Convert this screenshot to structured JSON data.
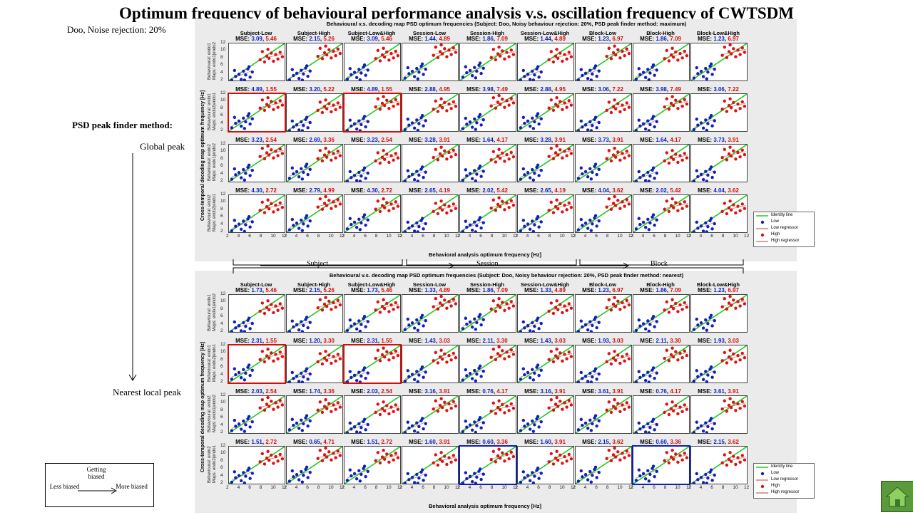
{
  "slide": {
    "title": "Optimum frequency of behavioural performance analysis v.s. oscillation frequency of CWTSDM",
    "subject_note": "Doo, Noise rejection:  20%",
    "method_heading": "PSD peak finder method:",
    "method_global": "Global peak",
    "method_nearest": "Nearest local peak",
    "groups": [
      "Subject",
      "Session",
      "Block"
    ],
    "bias_legend": {
      "top": "Getting biased",
      "left": "Less biased",
      "right": "More biased"
    }
  },
  "colors": {
    "low": "#1020c0",
    "high": "#e01010",
    "identity": "#22cc22",
    "regressor": "#d08080",
    "highlight_red": "#d01010",
    "highlight_blue": "#1020b0",
    "home": "#5a9a3a"
  },
  "icons": {
    "home_button": "home-icon",
    "down_arrow": "arrow-down-icon",
    "right_arrow": "arrow-right-icon"
  },
  "figure": {
    "columns": [
      "Subject-Low",
      "Subject-High",
      "Subject-Low&High",
      "Session-Low",
      "Session-High",
      "Session-Low&High",
      "Block-Low",
      "Block-High",
      "Block-Low&High"
    ],
    "ylabel": "Cross-temporal decoding map optimum frequency [Hz]",
    "xlabel": "Behavioral analysis optimum frequency [Hz]",
    "ticks": [
      "2",
      "4",
      "6",
      "8",
      "10",
      "12"
    ],
    "legend": [
      "Identity line",
      "Low",
      "Low regressor",
      "High",
      "High regressor"
    ],
    "top": {
      "suptitle": "Behavioural v.s. decoding map PSD optimum frequencies (Subject: Doo, Noisy behaviour rejection: 20%, PSD peak finder method: maximum)",
      "rows": [
        {
          "ylabel": [
            "Behavioural: endo1",
            "Maps: endo1|endo2"
          ],
          "mse": [
            [
              "3.09",
              "5.46"
            ],
            [
              "2.15",
              "5.26"
            ],
            [
              "3.09",
              "5.46"
            ],
            [
              "1.44",
              "4.89"
            ],
            [
              "1.86",
              "7.09"
            ],
            [
              "1.44",
              "4.89"
            ],
            [
              "1.23",
              "6.97"
            ],
            [
              "1.86",
              "7.09"
            ],
            [
              "1.23",
              "6.97"
            ]
          ]
        },
        {
          "ylabel": [
            "Behavioural: endo1",
            "Maps: endo2|endo1"
          ],
          "mse": [
            [
              "4.89",
              "1.55"
            ],
            [
              "3.20",
              "5.22"
            ],
            [
              "4.89",
              "1.55"
            ],
            [
              "2.88",
              "4.95"
            ],
            [
              "3.98",
              "7.49"
            ],
            [
              "2.88",
              "4.95"
            ],
            [
              "3.06",
              "7.22"
            ],
            [
              "3.98",
              "7.49"
            ],
            [
              "3.06",
              "7.22"
            ]
          ]
        },
        {
          "ylabel": [
            "Behavioural: endo2",
            "Maps: endo1|endo2"
          ],
          "mse": [
            [
              "3.23",
              "2.54"
            ],
            [
              "2.69",
              "3.36"
            ],
            [
              "3.23",
              "2.54"
            ],
            [
              "3.28",
              "3.91"
            ],
            [
              "1.64",
              "4.17"
            ],
            [
              "3.28",
              "3.91"
            ],
            [
              "3.73",
              "3.91"
            ],
            [
              "1.64",
              "4.17"
            ],
            [
              "3.73",
              "3.91"
            ]
          ]
        },
        {
          "ylabel": [
            "Behavioural: endo2",
            "Maps: endo2|endo1"
          ],
          "mse": [
            [
              "4.30",
              "2.72"
            ],
            [
              "2.79",
              "4.99"
            ],
            [
              "4.30",
              "2.72"
            ],
            [
              "2.65",
              "4.19"
            ],
            [
              "2.02",
              "5.42"
            ],
            [
              "2.65",
              "4.19"
            ],
            [
              "4.04",
              "3.62"
            ],
            [
              "2.02",
              "5.42"
            ],
            [
              "4.04",
              "3.62"
            ]
          ]
        }
      ]
    },
    "bottom": {
      "suptitle": "Behavioural v.s. decoding map PSD optimum frequencies (Subject: Doo, Noisy behaviour rejection: 20%, PSD peak finder method: nearest)",
      "rows": [
        {
          "ylabel": [
            "Behavioural: endo1",
            "Maps: endo1|endo2"
          ],
          "mse": [
            [
              "1.73",
              "5.46"
            ],
            [
              "2.15",
              "5.26"
            ],
            [
              "1.73",
              "5.46"
            ],
            [
              "1.33",
              "4.89"
            ],
            [
              "1.86",
              "7.09"
            ],
            [
              "1.33",
              "4.89"
            ],
            [
              "1.23",
              "6.97"
            ],
            [
              "1.86",
              "7.09"
            ],
            [
              "1.23",
              "6.97"
            ]
          ]
        },
        {
          "ylabel": [
            "Behavioural: endo1",
            "Maps: endo2|endo1"
          ],
          "mse": [
            [
              "2.31",
              "1.55"
            ],
            [
              "1.20",
              "3.30"
            ],
            [
              "2.31",
              "1.55"
            ],
            [
              "1.43",
              "3.03"
            ],
            [
              "2.11",
              "3.30"
            ],
            [
              "1.43",
              "3.03"
            ],
            [
              "1.93",
              "3.03"
            ],
            [
              "2.11",
              "3.30"
            ],
            [
              "1.93",
              "3.03"
            ]
          ]
        },
        {
          "ylabel": [
            "Behavioural: endo2",
            "Maps: endo1|endo2"
          ],
          "mse": [
            [
              "2.03",
              "2.54"
            ],
            [
              "1.74",
              "3.36"
            ],
            [
              "2.03",
              "2.54"
            ],
            [
              "3.16",
              "3.91"
            ],
            [
              "0.76",
              "4.17"
            ],
            [
              "3.16",
              "3.91"
            ],
            [
              "3.61",
              "3.91"
            ],
            [
              "0.76",
              "4.17"
            ],
            [
              "3.61",
              "3.91"
            ]
          ]
        },
        {
          "ylabel": [
            "Behavioural: endo2",
            "Maps: endo2|endo1"
          ],
          "mse": [
            [
              "1.51",
              "2.72"
            ],
            [
              "0.65",
              "4.71"
            ],
            [
              "1.51",
              "2.72"
            ],
            [
              "1.60",
              "3.91"
            ],
            [
              "0.60",
              "3.36"
            ],
            [
              "1.60",
              "3.91"
            ],
            [
              "2.15",
              "3.62"
            ],
            [
              "0.60",
              "3.36"
            ],
            [
              "2.15",
              "3.62"
            ]
          ]
        }
      ]
    }
  },
  "chart_data": {
    "type": "scatter",
    "xlabel": "Behavioral analysis optimum frequency [Hz]",
    "ylabel": "Cross-temporal decoding map optimum frequency [Hz]",
    "xlim": [
      2,
      12
    ],
    "ylim": [
      2,
      12
    ],
    "series": [
      {
        "name": "Low",
        "points": [
          [
            2.5,
            2.4
          ],
          [
            3.2,
            3.6
          ],
          [
            3.8,
            4.2
          ],
          [
            4.2,
            2.8
          ],
          [
            4.6,
            5.0
          ],
          [
            5.0,
            4.0
          ],
          [
            5.4,
            5.6
          ],
          [
            5.8,
            3.4
          ],
          [
            6.2,
            4.8
          ],
          [
            3.0,
            5.2
          ],
          [
            4.8,
            2.2
          ],
          [
            5.6,
            6.2
          ]
        ]
      },
      {
        "name": "High",
        "points": [
          [
            7.6,
            8.2
          ],
          [
            8.0,
            10.4
          ],
          [
            8.4,
            7.6
          ],
          [
            8.8,
            9.2
          ],
          [
            9.2,
            8.6
          ],
          [
            9.6,
            10.0
          ],
          [
            10.0,
            7.8
          ],
          [
            10.4,
            9.6
          ],
          [
            10.8,
            8.4
          ],
          [
            11.2,
            10.2
          ],
          [
            11.6,
            9.0
          ],
          [
            9.0,
            11.0
          ]
        ]
      }
    ],
    "lines": [
      "Identity line",
      "Low regressor",
      "High regressor"
    ]
  }
}
